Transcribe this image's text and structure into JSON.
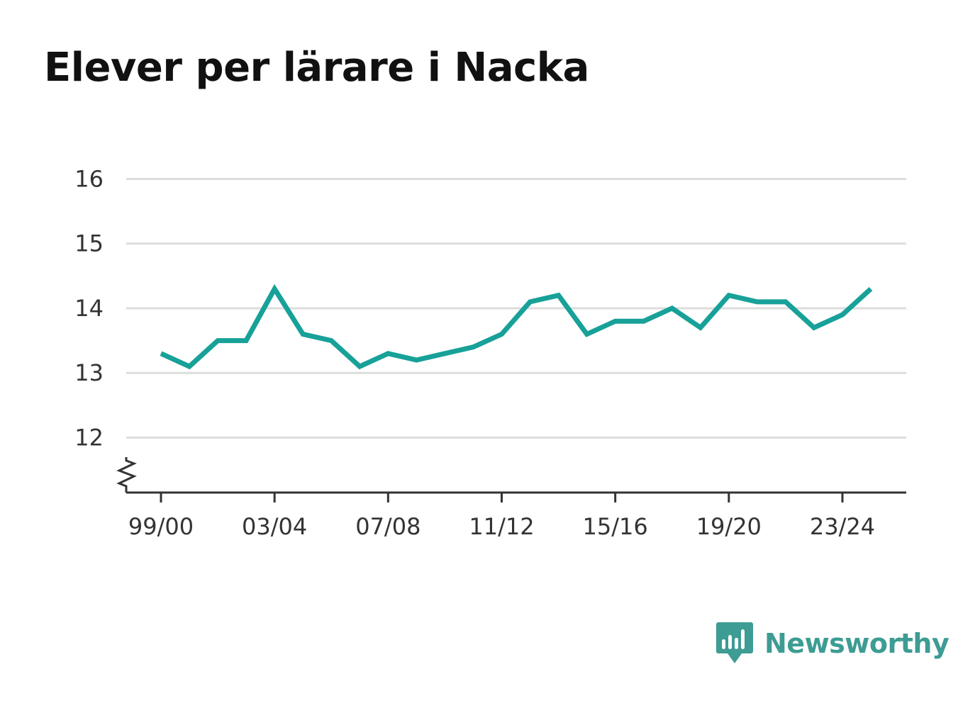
{
  "brand": {
    "name": "Newsworthy",
    "icon": "bar-chart-speech-bubble-icon",
    "color": "#3d9c93"
  },
  "chart_data": {
    "type": "line",
    "title": "Elever per lärare i Nacka",
    "xlabel": "",
    "ylabel": "",
    "x": [
      "99/00",
      "00/01",
      "01/02",
      "02/03",
      "03/04",
      "04/05",
      "05/06",
      "06/07",
      "07/08",
      "08/09",
      "09/10",
      "10/11",
      "11/12",
      "12/13",
      "13/14",
      "14/15",
      "15/16",
      "16/17",
      "17/18",
      "18/19",
      "19/20",
      "20/21",
      "21/22",
      "22/23",
      "23/24",
      "24/25"
    ],
    "xticks": [
      "99/00",
      "03/04",
      "07/08",
      "11/12",
      "15/16",
      "19/20",
      "23/24"
    ],
    "series": [
      {
        "color": "#17a198",
        "values": [
          13.3,
          13.1,
          13.5,
          13.5,
          14.3,
          13.6,
          13.5,
          13.1,
          13.3,
          13.2,
          13.3,
          13.4,
          13.6,
          14.1,
          14.2,
          13.6,
          13.8,
          13.8,
          14.0,
          13.7,
          14.2,
          14.1,
          14.1,
          13.7,
          13.9,
          14.3
        ]
      }
    ],
    "yticks": [
      12,
      13,
      14,
      15,
      16
    ],
    "ylim": [
      11.15,
      16
    ],
    "y_axis_break": true,
    "grid": true,
    "legend": "none"
  }
}
